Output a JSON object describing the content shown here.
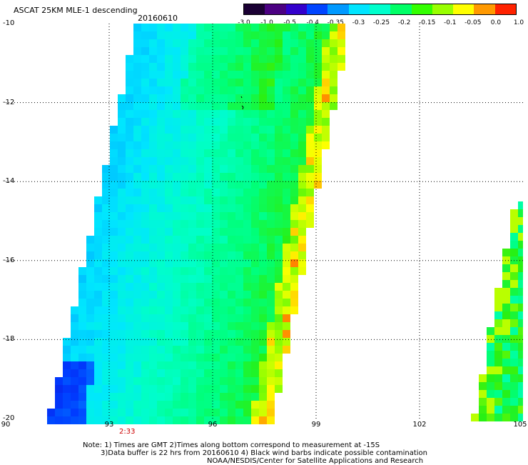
{
  "header": {
    "title": "ASCAT 25KM MLE-1 descending",
    "date": "20160610"
  },
  "colorbar": {
    "labels": [
      "-3.0",
      "-1.0",
      "-0.5",
      "-0.4",
      "-0.35",
      "-0.3",
      "-0.25",
      "-0.2",
      "-0.15",
      "-0.1",
      "-0.05",
      "0.0",
      "1.0"
    ],
    "colors": [
      "#1a0033",
      "#4b0082",
      "#3300cc",
      "#0044ff",
      "#0099ff",
      "#00e5ff",
      "#00ffcc",
      "#00ff66",
      "#33ff00",
      "#99ff00",
      "#ffff00",
      "#ff9900",
      "#ff2200"
    ]
  },
  "axes": {
    "y_ticks": [
      "-10",
      "-12",
      "-14",
      "-16",
      "-18",
      "-20"
    ],
    "x_ticks": [
      "90",
      "93",
      "96",
      "99",
      "102",
      "105"
    ]
  },
  "annotations": {
    "time_label": "2:33"
  },
  "notes": {
    "line1": "Note: 1) Times are GMT 2)Times along bottom correspond to measurement at -15S",
    "line2": "3)Data buffer is 22 hrs from 20160610 4) Black wind barbs indicate possible contamination",
    "line3": "NOAA/NESDIS/Center for Satellite Applications and Research"
  }
}
